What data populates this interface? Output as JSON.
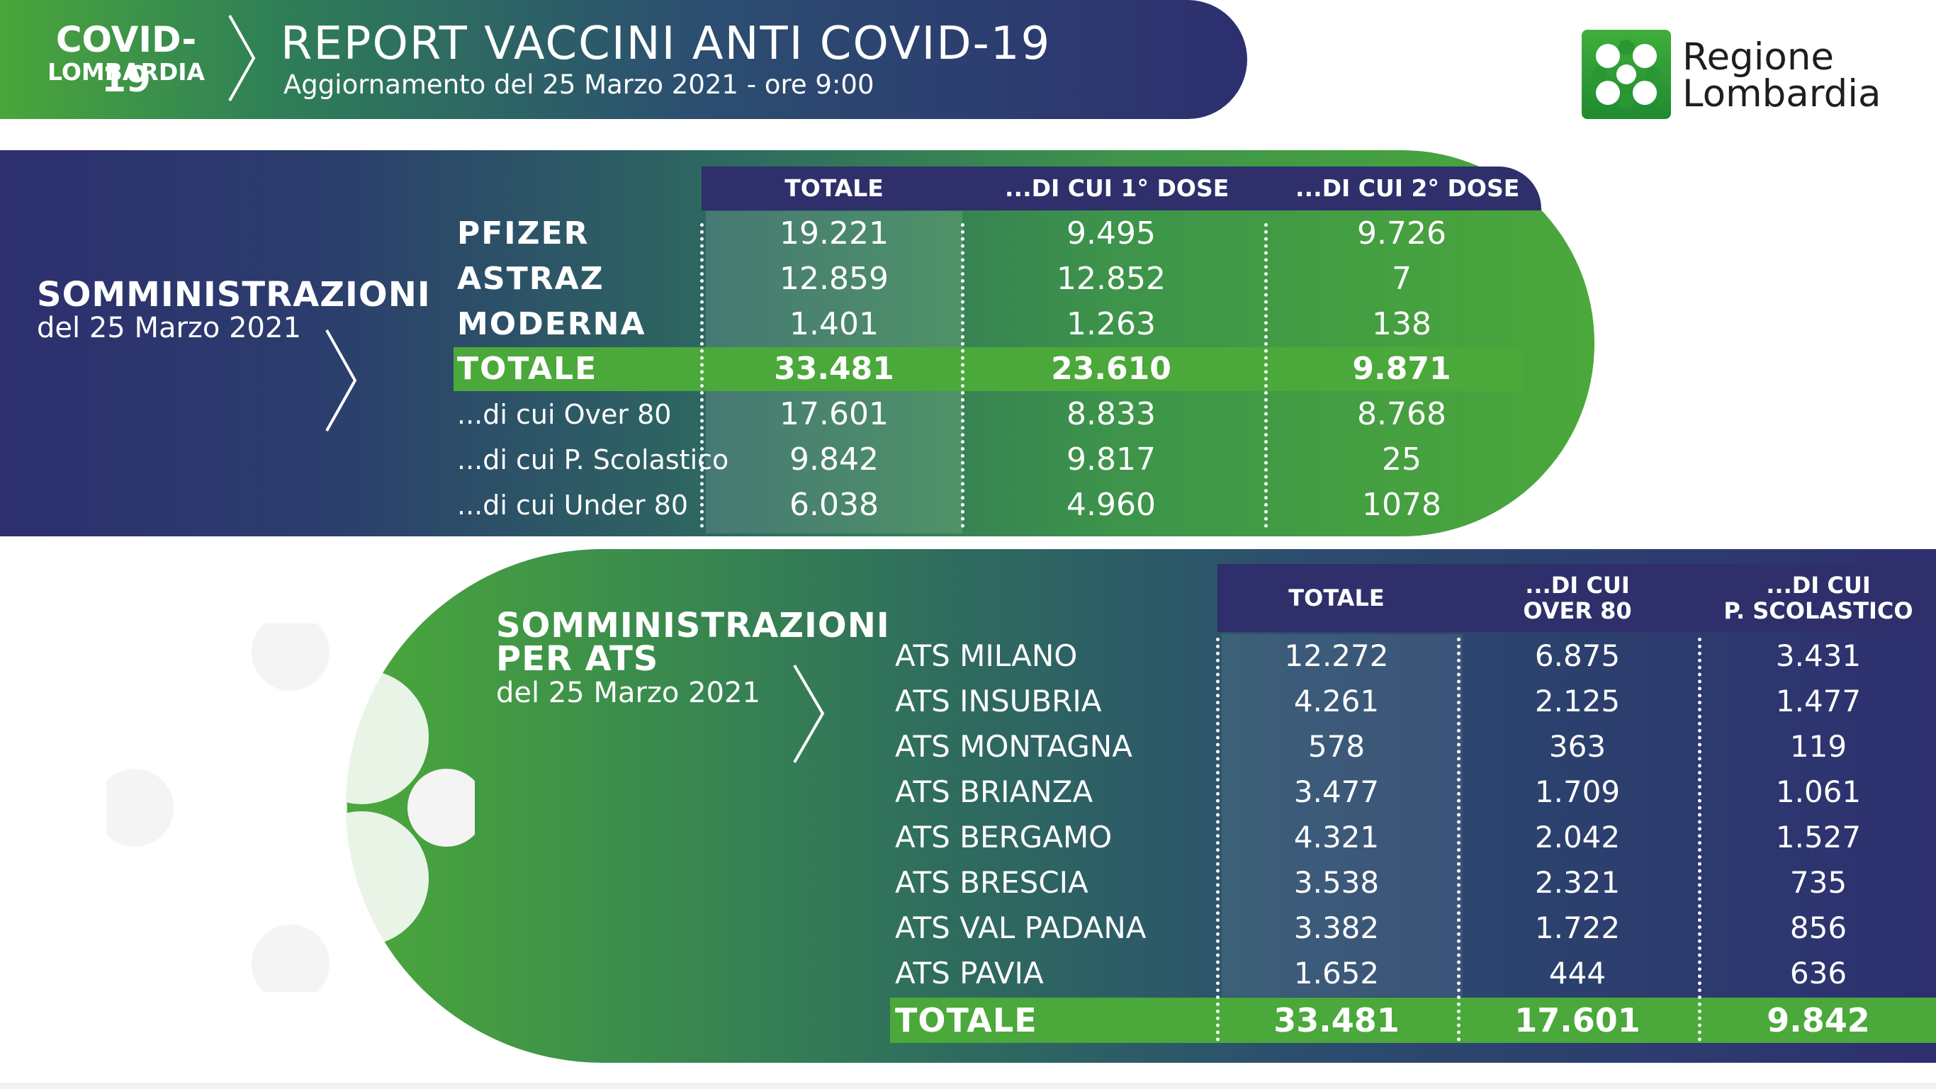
{
  "header": {
    "badge_line1": "COVID-19",
    "badge_line2": "LOMBARDIA",
    "title": "REPORT VACCINI ANTI COVID-19",
    "subtitle": "Aggiornamento del 25 Marzo 2021 - ore 9:00"
  },
  "logo": {
    "line1": "Regione",
    "line2": "Lombardia",
    "icon": "regione-lombardia-rose-icon"
  },
  "colors": {
    "green": "#4ba83a",
    "navy": "#2d2f6f",
    "white": "#ffffff"
  },
  "section1": {
    "title": "SOMMINISTRAZIONI",
    "date": "del 25 Marzo 2021",
    "columns": [
      "TOTALE",
      "...DI CUI 1° DOSE",
      "...DI CUI 2° DOSE"
    ],
    "rows": [
      {
        "label": "PFIZER",
        "values": [
          "19.221",
          "9.495",
          "9.726"
        ]
      },
      {
        "label": "ASTRAZ",
        "values": [
          "12.859",
          "12.852",
          "7"
        ]
      },
      {
        "label": "MODERNA",
        "values": [
          "1.401",
          "1.263",
          "138"
        ]
      },
      {
        "label": "TOTALE",
        "values": [
          "33.481",
          "23.610",
          "9.871"
        ]
      },
      {
        "label": "...di cui Over 80",
        "values": [
          "17.601",
          "8.833",
          "8.768"
        ]
      },
      {
        "label": "...di cui P. Scolastico",
        "values": [
          "9.842",
          "9.817",
          "25"
        ]
      },
      {
        "label": "...di cui Under 80",
        "values": [
          "6.038",
          "4.960",
          "1078"
        ]
      }
    ]
  },
  "section2": {
    "title_line1": "SOMMINISTRAZIONI",
    "title_line2": "PER ATS",
    "date": "del 25 Marzo 2021",
    "columns": [
      {
        "line1": "TOTALE",
        "line2": ""
      },
      {
        "line1": "...DI CUI",
        "line2": "OVER 80"
      },
      {
        "line1": "...DI CUI",
        "line2": "P. SCOLASTICO"
      }
    ],
    "rows": [
      {
        "label": "ATS MILANO",
        "values": [
          "12.272",
          "6.875",
          "3.431"
        ]
      },
      {
        "label": "ATS INSUBRIA",
        "values": [
          "4.261",
          "2.125",
          "1.477"
        ]
      },
      {
        "label": "ATS MONTAGNA",
        "values": [
          "578",
          "363",
          "119"
        ]
      },
      {
        "label": "ATS BRIANZA",
        "values": [
          "3.477",
          "1.709",
          "1.061"
        ]
      },
      {
        "label": "ATS BERGAMO",
        "values": [
          "4.321",
          "2.042",
          "1.527"
        ]
      },
      {
        "label": "ATS BRESCIA",
        "values": [
          "3.538",
          "2.321",
          "735"
        ]
      },
      {
        "label": "ATS VAL PADANA",
        "values": [
          "3.382",
          "1.722",
          "856"
        ]
      },
      {
        "label": "ATS PAVIA",
        "values": [
          "1.652",
          "444",
          "636"
        ]
      },
      {
        "label": "TOTALE",
        "values": [
          "33.481",
          "17.601",
          "9.842"
        ]
      }
    ]
  }
}
